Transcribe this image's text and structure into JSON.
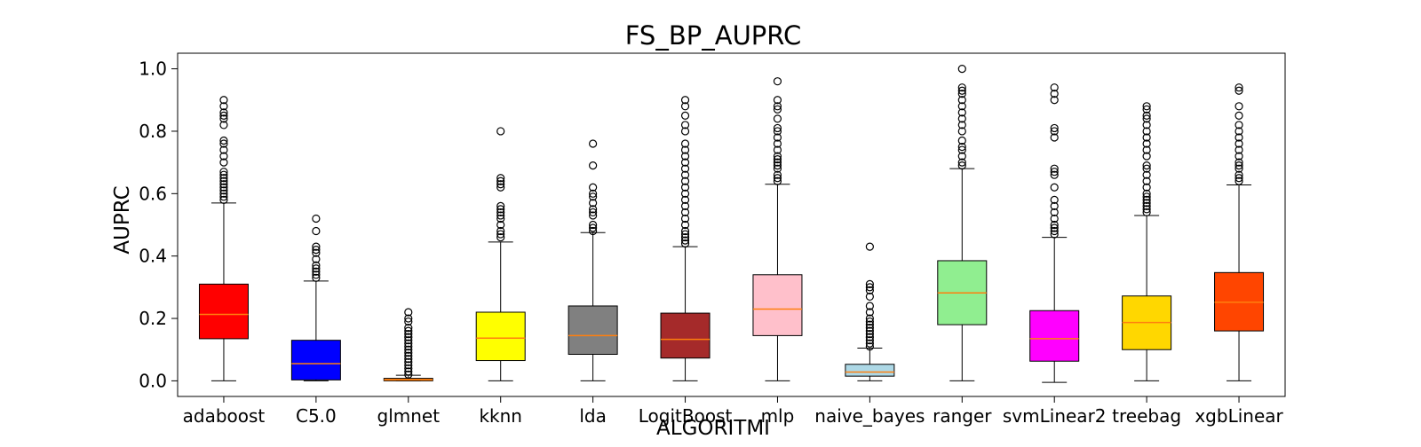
{
  "chart_data": {
    "type": "box",
    "title": "FS_BP_AUPRC",
    "xlabel": "ALGORITMI",
    "ylabel": "AUPRC",
    "ylim": [
      -0.05,
      1.05
    ],
    "yticks": [
      0.0,
      0.2,
      0.4,
      0.6,
      0.8,
      1.0
    ],
    "ytick_labels": [
      "0.0",
      "0.2",
      "0.4",
      "0.6",
      "0.8",
      "1.0"
    ],
    "grid": false,
    "median_color": "#ff7f0e",
    "categories": [
      "adaboost",
      "C5.0",
      "glmnet",
      "kknn",
      "lda",
      "LogitBoost",
      "mlp",
      "naive_bayes",
      "ranger",
      "svmLinear2",
      "treebag",
      "xgbLinear"
    ],
    "series": [
      {
        "category": "adaboost",
        "color": "#ff0000",
        "whisker_low": 0.0,
        "q1": 0.135,
        "median": 0.213,
        "q3": 0.31,
        "whisker_high": 0.57,
        "outliers": [
          0.58,
          0.59,
          0.6,
          0.61,
          0.62,
          0.63,
          0.64,
          0.65,
          0.66,
          0.67,
          0.7,
          0.72,
          0.74,
          0.76,
          0.77,
          0.82,
          0.84,
          0.85,
          0.86,
          0.88,
          0.9
        ]
      },
      {
        "category": "C5.0",
        "color": "#0000ff",
        "whisker_low": 0.0,
        "q1": 0.003,
        "median": 0.055,
        "q3": 0.13,
        "whisker_high": 0.32,
        "outliers": [
          0.33,
          0.34,
          0.35,
          0.36,
          0.37,
          0.39,
          0.41,
          0.42,
          0.43,
          0.48,
          0.52
        ]
      },
      {
        "category": "glmnet",
        "color": "#ff7f0e",
        "whisker_low": 0.0,
        "q1": 0.0,
        "median": 0.003,
        "q3": 0.008,
        "whisker_high": 0.018,
        "outliers": [
          0.02,
          0.03,
          0.04,
          0.05,
          0.06,
          0.07,
          0.08,
          0.09,
          0.1,
          0.11,
          0.12,
          0.13,
          0.14,
          0.15,
          0.16,
          0.17,
          0.19,
          0.2,
          0.22
        ]
      },
      {
        "category": "kknn",
        "color": "#ffff00",
        "whisker_low": 0.0,
        "q1": 0.065,
        "median": 0.137,
        "q3": 0.22,
        "whisker_high": 0.445,
        "outliers": [
          0.46,
          0.47,
          0.48,
          0.5,
          0.52,
          0.53,
          0.54,
          0.55,
          0.56,
          0.62,
          0.63,
          0.64,
          0.65,
          0.8
        ]
      },
      {
        "category": "lda",
        "color": "#808080",
        "whisker_low": 0.0,
        "q1": 0.085,
        "median": 0.145,
        "q3": 0.24,
        "whisker_high": 0.475,
        "outliers": [
          0.48,
          0.49,
          0.5,
          0.53,
          0.54,
          0.55,
          0.57,
          0.59,
          0.6,
          0.62,
          0.69,
          0.76
        ]
      },
      {
        "category": "LogitBoost",
        "color": "#a52a2a",
        "whisker_low": 0.0,
        "q1": 0.073,
        "median": 0.133,
        "q3": 0.217,
        "whisker_high": 0.43,
        "outliers": [
          0.44,
          0.45,
          0.46,
          0.47,
          0.48,
          0.5,
          0.52,
          0.54,
          0.56,
          0.58,
          0.6,
          0.62,
          0.64,
          0.66,
          0.68,
          0.7,
          0.72,
          0.74,
          0.76,
          0.8,
          0.82,
          0.85,
          0.88,
          0.9
        ]
      },
      {
        "category": "mlp",
        "color": "#ffc0cb",
        "whisker_low": 0.0,
        "q1": 0.145,
        "median": 0.23,
        "q3": 0.34,
        "whisker_high": 0.63,
        "outliers": [
          0.64,
          0.65,
          0.66,
          0.68,
          0.69,
          0.7,
          0.71,
          0.72,
          0.74,
          0.76,
          0.78,
          0.8,
          0.81,
          0.84,
          0.87,
          0.88,
          0.9,
          0.96
        ]
      },
      {
        "category": "naive_bayes",
        "color": "#add8e6",
        "whisker_low": 0.0,
        "q1": 0.015,
        "median": 0.028,
        "q3": 0.053,
        "whisker_high": 0.105,
        "outliers": [
          0.11,
          0.12,
          0.13,
          0.14,
          0.15,
          0.16,
          0.17,
          0.18,
          0.19,
          0.2,
          0.22,
          0.24,
          0.27,
          0.29,
          0.3,
          0.31,
          0.43
        ]
      },
      {
        "category": "ranger",
        "color": "#90ee90",
        "whisker_low": 0.0,
        "q1": 0.18,
        "median": 0.282,
        "q3": 0.385,
        "whisker_high": 0.68,
        "outliers": [
          0.69,
          0.7,
          0.72,
          0.74,
          0.75,
          0.77,
          0.8,
          0.82,
          0.84,
          0.86,
          0.88,
          0.9,
          0.92,
          0.93,
          0.94,
          1.0
        ]
      },
      {
        "category": "svmLinear2",
        "color": "#ff00ff",
        "whisker_low": -0.005,
        "q1": 0.063,
        "median": 0.135,
        "q3": 0.225,
        "whisker_high": 0.46,
        "outliers": [
          0.47,
          0.48,
          0.49,
          0.5,
          0.52,
          0.54,
          0.56,
          0.58,
          0.62,
          0.66,
          0.67,
          0.68,
          0.78,
          0.8,
          0.81,
          0.9,
          0.92,
          0.94
        ]
      },
      {
        "category": "treebag",
        "color": "#ffd700",
        "whisker_low": 0.0,
        "q1": 0.1,
        "median": 0.187,
        "q3": 0.272,
        "whisker_high": 0.53,
        "outliers": [
          0.54,
          0.55,
          0.56,
          0.57,
          0.58,
          0.59,
          0.6,
          0.62,
          0.64,
          0.66,
          0.68,
          0.69,
          0.72,
          0.74,
          0.76,
          0.78,
          0.8,
          0.82,
          0.84,
          0.85,
          0.87,
          0.88
        ]
      },
      {
        "category": "xgbLinear",
        "color": "#ff4500",
        "whisker_low": 0.0,
        "q1": 0.16,
        "median": 0.252,
        "q3": 0.347,
        "whisker_high": 0.628,
        "outliers": [
          0.64,
          0.65,
          0.66,
          0.68,
          0.69,
          0.7,
          0.72,
          0.74,
          0.76,
          0.78,
          0.8,
          0.82,
          0.85,
          0.88,
          0.93,
          0.94
        ]
      }
    ]
  }
}
